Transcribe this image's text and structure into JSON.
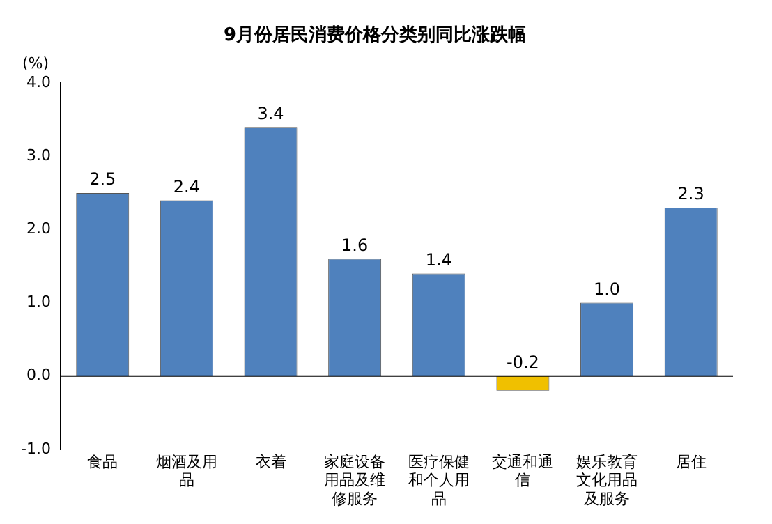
{
  "chart_data": {
    "type": "bar",
    "title": "9月份居民消费价格分类别同比涨跌幅",
    "ylabel": "(%)",
    "categories": [
      "食品",
      "烟酒及用品",
      "衣着",
      "家庭设备用品及维修服务",
      "医疗保健和个人用品",
      "交通和通信",
      "娱乐教育文化用品及服务",
      "居住"
    ],
    "values": [
      2.5,
      2.4,
      3.4,
      1.6,
      1.4,
      -0.2,
      1.0,
      2.3
    ],
    "colors": [
      "#4f81bd",
      "#4f81bd",
      "#4f81bd",
      "#4f81bd",
      "#4f81bd",
      "#f0c000",
      "#4f81bd",
      "#4f81bd"
    ],
    "value_labels": [
      "2.5",
      "2.4",
      "3.4",
      "1.6",
      "1.4",
      "-0.2",
      "1.0",
      "2.3"
    ],
    "ylim": [
      -1,
      4
    ],
    "yticks": [
      {
        "value": -1,
        "label": "-1.0"
      },
      {
        "value": 0,
        "label": "0.0"
      },
      {
        "value": 1,
        "label": "1.0"
      },
      {
        "value": 2,
        "label": "2.0"
      },
      {
        "value": 3,
        "label": "3.0"
      },
      {
        "value": 4,
        "label": "4.0"
      }
    ],
    "ref_lines": [
      {
        "axis": "y",
        "value": 0,
        "color": "#000000"
      }
    ],
    "grid": false,
    "legend": false
  }
}
